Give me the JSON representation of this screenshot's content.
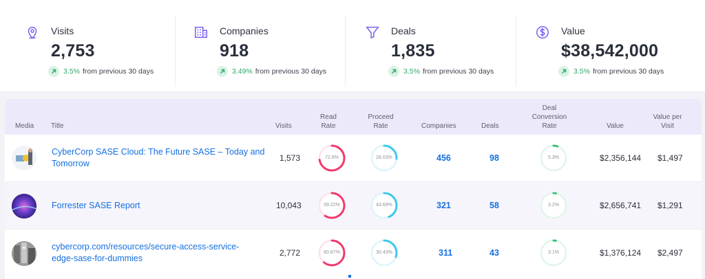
{
  "stats": [
    {
      "label": "Visits",
      "value": "2,753",
      "change": "3.5%",
      "change_text": "from previous 30 days",
      "icon": "location-pin-icon"
    },
    {
      "label": "Companies",
      "value": "918",
      "change": "3.49%",
      "change_text": "from previous 30 days",
      "icon": "building-icon"
    },
    {
      "label": "Deals",
      "value": "1,835",
      "change": "3.5%",
      "change_text": "from previous 30 days",
      "icon": "funnel-icon"
    },
    {
      "label": "Value",
      "value": "$38,542,000",
      "change": "3.5%",
      "change_text": "from previous 30 days",
      "icon": "dollar-circle-icon"
    }
  ],
  "table": {
    "headers": {
      "media": "Media",
      "title": "Title",
      "visits": "Visits",
      "read_rate_1": "Read",
      "read_rate_2": "Rate",
      "proceed_rate_1": "Proceed",
      "proceed_rate_2": "Rate",
      "companies": "Companies",
      "deals": "Deals",
      "dcr_1": "Deal",
      "dcr_2": "Conversion",
      "dcr_3": "Rate",
      "value": "Value",
      "vpv_1": "Value per",
      "vpv_2": "Visit"
    },
    "rows": [
      {
        "title_1": "CyberCorp SASE Cloud: The Future SASE – Today and",
        "title_2": "Tomorrow",
        "visits": "1,573",
        "read_rate": "72.6%",
        "read_rate_value": 72.6,
        "proceed_rate": "26.03%",
        "proceed_rate_value": 26.03,
        "companies": "456",
        "deals": "98",
        "conversion_rate": "5.3%",
        "conversion_rate_value": 5.3,
        "value": "$2,356,144",
        "value_per_visit": "$1,497"
      },
      {
        "title_1": "Forrester SASE Report",
        "title_2": "",
        "visits": "10,043",
        "read_rate": "59.22%",
        "read_rate_value": 59.22,
        "proceed_rate": "43.69%",
        "proceed_rate_value": 43.69,
        "companies": "321",
        "deals": "58",
        "conversion_rate": "3.2%",
        "conversion_rate_value": 3.2,
        "value": "$2,656,741",
        "value_per_visit": "$1,291"
      },
      {
        "title_1": "cybercorp.com/resources/secure-access-service-",
        "title_2": "edge-sase-for-dummies",
        "visits": "2,772",
        "read_rate": "60.87%",
        "read_rate_value": 60.87,
        "proceed_rate": "30.43%",
        "proceed_rate_value": 30.43,
        "companies": "311",
        "deals": "43",
        "conversion_rate": "3.1%",
        "conversion_rate_value": 3.1,
        "value": "$1,376,124",
        "value_per_visit": "$2,497"
      }
    ]
  },
  "colors": {
    "accent": "#7b5cf0",
    "link": "#1670e0",
    "read_ring": "#f2386b",
    "proceed_ring": "#3cc8ea",
    "conversion_ring": "#3fc07e",
    "up": "#2fa86a"
  }
}
